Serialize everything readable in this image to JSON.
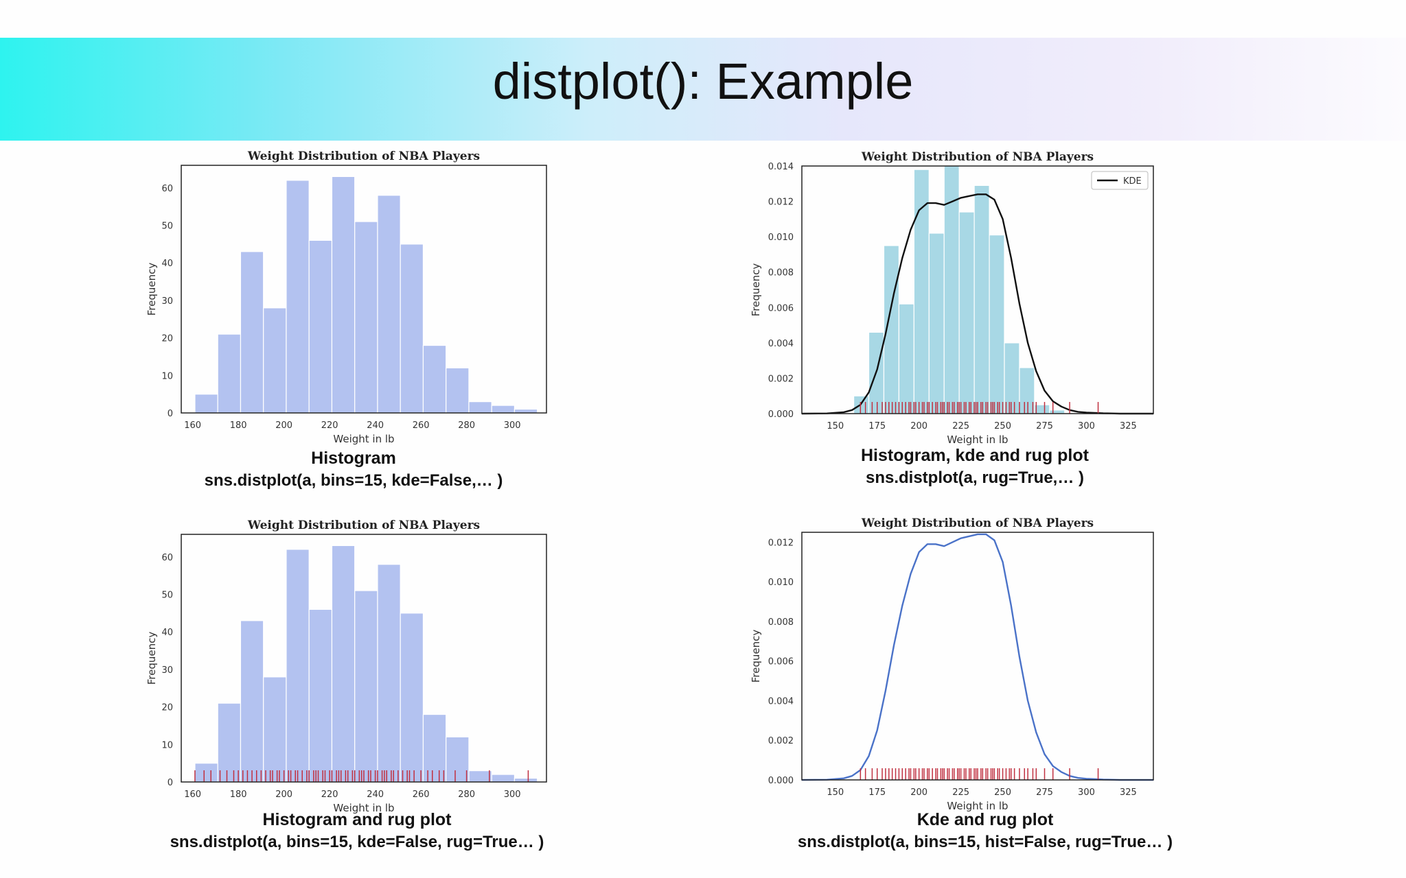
{
  "slide": {
    "title": "distplot(): Example"
  },
  "captions": [
    {
      "line1": "Histogram",
      "line2": "sns.distplot(a, bins=15, kde=False,… )"
    },
    {
      "line1": "Histogram, kde and rug plot",
      "line2": "sns.distplot(a, rug=True,… )"
    },
    {
      "line1": "Histogram and rug plot",
      "line2": "sns.distplot(a, bins=15, kde=False, rug=True… )"
    },
    {
      "line1": "Kde and rug plot",
      "line2": "sns.distplot(a, bins=15, hist=False, rug=True… )"
    }
  ],
  "colors": {
    "hist_blue": "#b3c2f0",
    "hist_lightblue": "#a8d8e5",
    "rug_red": "#c03040",
    "kde_black": "#111111",
    "kde_blue": "#4a72c8"
  },
  "chart_data": [
    {
      "type": "bar",
      "title": "Weight Distribution of NBA Players",
      "xlabel": "Weight in lb",
      "ylabel": "Frequency",
      "bin_edges": [
        161,
        171,
        181,
        191,
        201,
        211,
        221,
        231,
        241,
        251,
        261,
        271,
        281,
        291,
        301,
        311
      ],
      "values": [
        5,
        21,
        43,
        28,
        62,
        46,
        63,
        51,
        58,
        45,
        18,
        12,
        3,
        2,
        1
      ],
      "xlim": [
        155,
        315
      ],
      "ylim": [
        0,
        66
      ],
      "xticks": [
        160,
        180,
        200,
        220,
        240,
        260,
        280,
        300
      ],
      "yticks": [
        0,
        10,
        20,
        30,
        40,
        50,
        60
      ]
    },
    {
      "type": "bar",
      "title": "Weight Distribution of NBA Players",
      "xlabel": "Weight in lb",
      "ylabel": "Frequency",
      "legend": [
        "KDE"
      ],
      "bin_edges": [
        161,
        170,
        179,
        188,
        197,
        206,
        215,
        224,
        233,
        242,
        251,
        260,
        269,
        278,
        287
      ],
      "values": [
        0.001,
        0.0046,
        0.0095,
        0.0062,
        0.0138,
        0.0102,
        0.014,
        0.0114,
        0.0129,
        0.0101,
        0.004,
        0.0026,
        0.0005,
        0.0002
      ],
      "kde_x": [
        130,
        145,
        155,
        160,
        165,
        170,
        175,
        180,
        185,
        190,
        195,
        200,
        205,
        210,
        215,
        220,
        225,
        230,
        235,
        240,
        245,
        250,
        255,
        260,
        265,
        270,
        275,
        280,
        285,
        290,
        295,
        300,
        305,
        310,
        315,
        320,
        330,
        340
      ],
      "kde_y": [
        0,
        1e-05,
        8e-05,
        0.0002,
        0.0005,
        0.0012,
        0.0025,
        0.0045,
        0.0068,
        0.0088,
        0.0104,
        0.0115,
        0.0119,
        0.0119,
        0.0118,
        0.012,
        0.0122,
        0.0123,
        0.0124,
        0.0124,
        0.0121,
        0.011,
        0.0088,
        0.0062,
        0.004,
        0.0024,
        0.0013,
        0.0007,
        0.0004,
        0.0002,
        0.0001,
        6e-05,
        4e-05,
        2e-05,
        1e-05,
        0,
        0,
        0
      ],
      "rug": [
        165,
        168,
        172,
        175,
        178,
        180,
        182,
        184,
        186,
        188,
        190,
        192,
        194,
        195,
        197,
        198,
        200,
        202,
        203,
        205,
        206,
        208,
        210,
        211,
        213,
        214,
        215,
        217,
        218,
        220,
        221,
        223,
        224,
        225,
        227,
        228,
        230,
        231,
        233,
        234,
        235,
        237,
        238,
        240,
        241,
        243,
        244,
        245,
        247,
        248,
        250,
        252,
        254,
        255,
        257,
        260,
        263,
        265,
        268,
        270,
        275,
        280,
        290,
        307
      ],
      "xlim": [
        130,
        340
      ],
      "ylim": [
        0,
        0.014
      ],
      "xticks": [
        150,
        175,
        200,
        225,
        250,
        275,
        300,
        325
      ],
      "yticks": [
        0,
        0.002,
        0.004,
        0.006,
        0.008,
        0.01,
        0.012,
        0.014
      ],
      "ytick_labels": [
        "0.000",
        "0.002",
        "0.004",
        "0.006",
        "0.008",
        "0.010",
        "0.012",
        "0.014"
      ]
    },
    {
      "type": "bar",
      "title": "Weight Distribution of NBA Players",
      "xlabel": "Weight in lb",
      "ylabel": "Frequency",
      "bin_edges": [
        161,
        171,
        181,
        191,
        201,
        211,
        221,
        231,
        241,
        251,
        261,
        271,
        281,
        291,
        301,
        311
      ],
      "values": [
        5,
        21,
        43,
        28,
        62,
        46,
        63,
        51,
        58,
        45,
        18,
        12,
        3,
        2,
        1
      ],
      "rug": [
        161,
        165,
        168,
        172,
        175,
        178,
        180,
        182,
        184,
        186,
        188,
        190,
        192,
        194,
        195,
        197,
        198,
        200,
        202,
        203,
        205,
        206,
        208,
        210,
        211,
        213,
        214,
        215,
        217,
        218,
        220,
        221,
        223,
        224,
        225,
        227,
        228,
        230,
        231,
        233,
        234,
        235,
        237,
        238,
        240,
        241,
        243,
        244,
        245,
        247,
        248,
        250,
        252,
        254,
        255,
        257,
        260,
        263,
        265,
        268,
        270,
        275,
        280,
        290,
        307
      ],
      "xlim": [
        155,
        315
      ],
      "ylim": [
        0,
        66
      ],
      "xticks": [
        160,
        180,
        200,
        220,
        240,
        260,
        280,
        300
      ],
      "yticks": [
        0,
        10,
        20,
        30,
        40,
        50,
        60
      ]
    },
    {
      "type": "line",
      "title": "Weight Distribution of NBA Players",
      "xlabel": "Weight in lb",
      "ylabel": "Frequency",
      "kde_x": [
        130,
        145,
        155,
        160,
        165,
        170,
        175,
        180,
        185,
        190,
        195,
        200,
        205,
        210,
        215,
        220,
        225,
        230,
        235,
        240,
        245,
        250,
        255,
        260,
        265,
        270,
        275,
        280,
        285,
        290,
        295,
        300,
        305,
        310,
        315,
        320,
        330,
        340
      ],
      "kde_y": [
        0,
        1e-05,
        8e-05,
        0.0002,
        0.0005,
        0.0012,
        0.0025,
        0.0045,
        0.0068,
        0.0088,
        0.0104,
        0.0115,
        0.0119,
        0.0119,
        0.0118,
        0.012,
        0.0122,
        0.0123,
        0.0124,
        0.0124,
        0.0121,
        0.011,
        0.0088,
        0.0062,
        0.004,
        0.0024,
        0.0013,
        0.0007,
        0.0004,
        0.0002,
        0.0001,
        6e-05,
        4e-05,
        2e-05,
        1e-05,
        0,
        0,
        0
      ],
      "rug": [
        165,
        168,
        172,
        175,
        178,
        180,
        182,
        184,
        186,
        188,
        190,
        192,
        194,
        195,
        197,
        198,
        200,
        202,
        203,
        205,
        206,
        208,
        210,
        211,
        213,
        214,
        215,
        217,
        218,
        220,
        221,
        223,
        224,
        225,
        227,
        228,
        230,
        231,
        233,
        234,
        235,
        237,
        238,
        240,
        241,
        243,
        244,
        245,
        247,
        248,
        250,
        252,
        254,
        255,
        257,
        260,
        263,
        265,
        268,
        270,
        275,
        280,
        290,
        307
      ],
      "xlim": [
        130,
        340
      ],
      "ylim": [
        0,
        0.0125
      ],
      "xticks": [
        150,
        175,
        200,
        225,
        250,
        275,
        300,
        325
      ],
      "yticks": [
        0,
        0.002,
        0.004,
        0.006,
        0.008,
        0.01,
        0.012
      ],
      "ytick_labels": [
        "0.000",
        "0.002",
        "0.004",
        "0.006",
        "0.008",
        "0.010",
        "0.012"
      ]
    }
  ]
}
